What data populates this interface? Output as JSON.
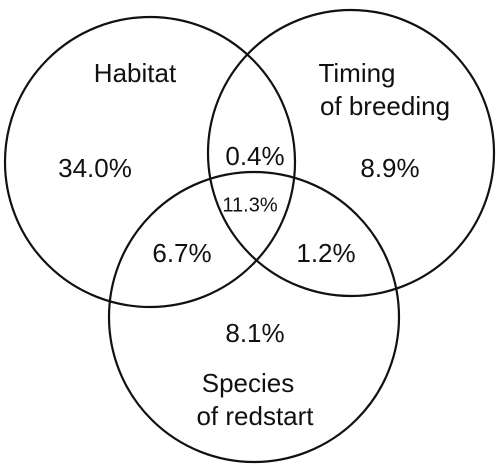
{
  "sets": [
    {
      "lines": [
        "Habitat"
      ]
    },
    {
      "lines": [
        "Timing",
        "of breeding"
      ]
    },
    {
      "lines": [
        "Species",
        "of redstart"
      ]
    }
  ],
  "regions": [
    {
      "label": "34.0%"
    },
    {
      "label": "0.4%"
    },
    {
      "label": "8.9%"
    },
    {
      "label": "11.3%"
    },
    {
      "label": "6.7%"
    },
    {
      "label": "1.2%"
    },
    {
      "label": "8.1%"
    }
  ]
}
